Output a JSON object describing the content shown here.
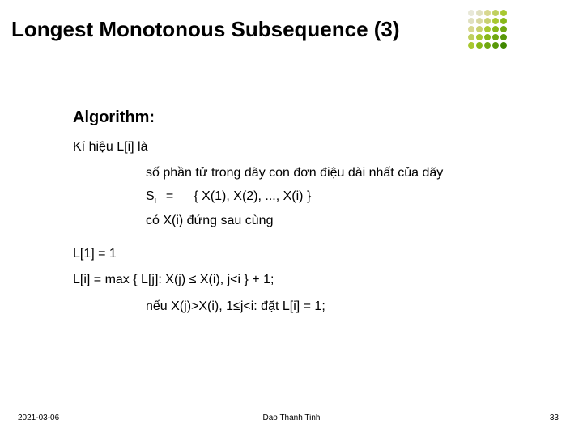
{
  "title": "Longest Monotonous Subsequence (3)",
  "algo_heading": "Algorithm:",
  "line1": "Kí hiệu L[i] là",
  "line2": "số phần tử trong dãy con đơn điệu dài nhất của dãy",
  "si_label": "S",
  "si_sub": "i",
  "si_eq": "=",
  "si_set": "{ X(1), X(2), ..., X(i) }",
  "line_co": "có X(i) đứng sau cùng",
  "line_l1": "L[1] = 1",
  "line_li": "L[i] = max { L[j]: X(j) ≤ X(i), j<i } + 1;",
  "line_neu": "nếu X(j)>X(i), 1≤j<i: đặt L[i] = 1;",
  "footer_date": "2021-03-06",
  "footer_author": "Dao Thanh Tinh",
  "footer_page": "33",
  "dot_colors": [
    "#e8e8d8",
    "#e0e0c0",
    "#d8d890",
    "#c0d060",
    "#a8c830",
    "#e0e0c0",
    "#d8d8a0",
    "#c8d070",
    "#a8c830",
    "#88b818",
    "#d8d890",
    "#c8d070",
    "#a8c830",
    "#88b818",
    "#70a810",
    "#c0d060",
    "#a8c830",
    "#88b818",
    "#70a810",
    "#589808",
    "#a8c830",
    "#88b818",
    "#70a810",
    "#589808",
    "#408800"
  ]
}
